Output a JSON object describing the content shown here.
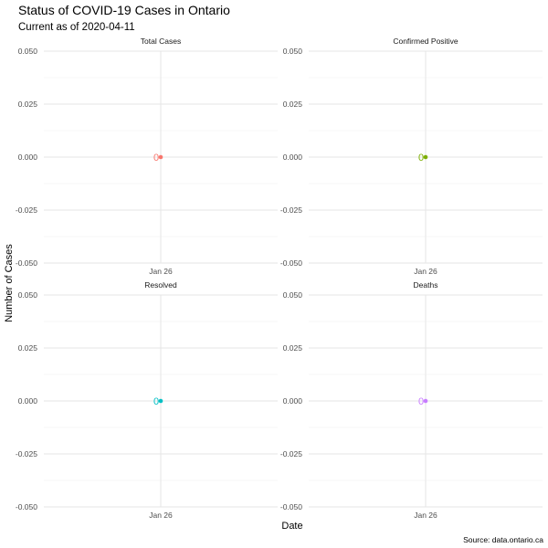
{
  "chart_data": {
    "type": "scatter",
    "title": "Status of COVID-19 Cases in Ontario",
    "subtitle": "Current as of 2020-04-11",
    "xlabel": "Date",
    "ylabel": "Number of Cases",
    "caption": "Source: data.ontario.ca",
    "ylim": [
      -0.05,
      0.05
    ],
    "y_ticks": [
      "0.050",
      "0.025",
      "0.000",
      "-0.025",
      "-0.050"
    ],
    "x_tick": "Jan 26",
    "grid": true,
    "legend": "none",
    "panels": [
      {
        "name": "Total Cases",
        "x": [
          "Jan 26"
        ],
        "values": [
          0
        ],
        "labels": [
          "0"
        ],
        "color": "#F8766D"
      },
      {
        "name": "Confirmed Positive",
        "x": [
          "Jan 26"
        ],
        "values": [
          0
        ],
        "labels": [
          "0"
        ],
        "color": "#7CAE00"
      },
      {
        "name": "Resolved",
        "x": [
          "Jan 26"
        ],
        "values": [
          0
        ],
        "labels": [
          "0"
        ],
        "color": "#00BFC4"
      },
      {
        "name": "Deaths",
        "x": [
          "Jan 26"
        ],
        "values": [
          0
        ],
        "labels": [
          "0"
        ],
        "color": "#C77CFF"
      }
    ]
  }
}
